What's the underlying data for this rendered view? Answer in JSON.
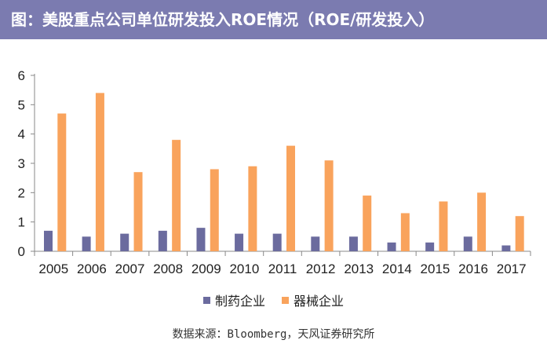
{
  "header": {
    "title": "图：美股重点公司单位研发投入ROE情况（ROE/研发投入）"
  },
  "source": "数据来源：Bloomberg，天风证券研究所",
  "colors": {
    "pharma": "#6b6b9e",
    "device": "#f9a35c"
  },
  "chart_data": {
    "type": "bar",
    "title": "美股重点公司单位研发投入ROE情况（ROE/研发投入）",
    "categories": [
      "2005",
      "2006",
      "2007",
      "2008",
      "2009",
      "2010",
      "2011",
      "2012",
      "2013",
      "2014",
      "2015",
      "2016",
      "2017"
    ],
    "series": [
      {
        "name": "制药企业",
        "values": [
          0.7,
          0.5,
          0.6,
          0.7,
          0.8,
          0.6,
          0.6,
          0.5,
          0.5,
          0.3,
          0.3,
          0.5,
          0.2
        ]
      },
      {
        "name": "器械企业",
        "values": [
          4.7,
          5.4,
          2.7,
          3.8,
          2.8,
          2.9,
          3.6,
          3.1,
          1.9,
          1.3,
          1.7,
          2.0,
          1.2
        ]
      }
    ],
    "yticks": [
      0,
      1,
      2,
      3,
      4,
      5,
      6
    ],
    "ylim": [
      0,
      6
    ],
    "xlabel": "",
    "ylabel": "",
    "legend_position": "bottom"
  }
}
